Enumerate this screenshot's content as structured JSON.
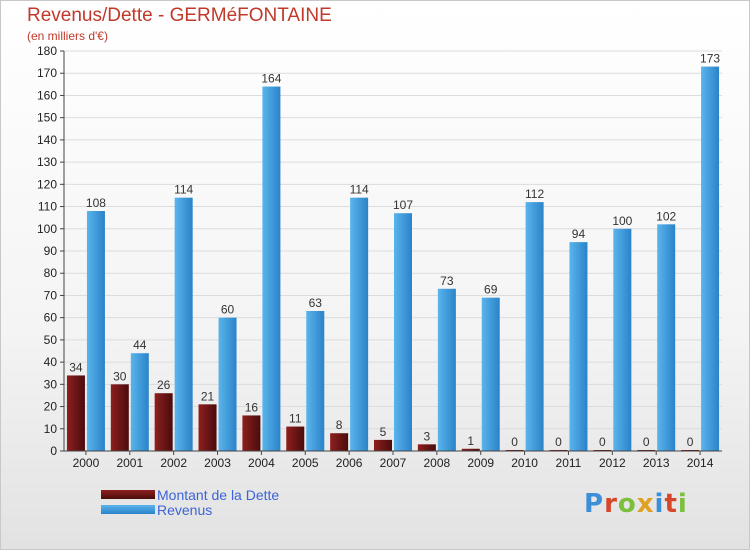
{
  "title": "Revenus/Dette - GERMéFONTAINE",
  "subtitle": "(en milliers d'€)",
  "colors": {
    "dette": "#7a1a1a",
    "revenus": "#3a9ee4"
  },
  "logo": {
    "text": "Proxiti"
  },
  "chart_data": {
    "type": "bar",
    "categories": [
      "2000",
      "2001",
      "2002",
      "2003",
      "2004",
      "2005",
      "2006",
      "2007",
      "2008",
      "2009",
      "2010",
      "2011",
      "2012",
      "2013",
      "2014"
    ],
    "series": [
      {
        "name": "Montant de la Dette",
        "values": [
          34,
          30,
          26,
          21,
          16,
          11,
          8,
          5,
          3,
          1,
          0,
          0,
          0,
          0,
          0
        ]
      },
      {
        "name": "Revenus",
        "values": [
          108,
          44,
          114,
          60,
          164,
          63,
          114,
          107,
          73,
          69,
          112,
          94,
          100,
          102,
          173
        ]
      }
    ],
    "ylim": [
      0,
      180
    ],
    "yticks": [
      0,
      10,
      20,
      30,
      40,
      50,
      60,
      70,
      80,
      90,
      100,
      110,
      120,
      130,
      140,
      150,
      160,
      170,
      180
    ],
    "grid": true,
    "legend": "bottom-left"
  }
}
